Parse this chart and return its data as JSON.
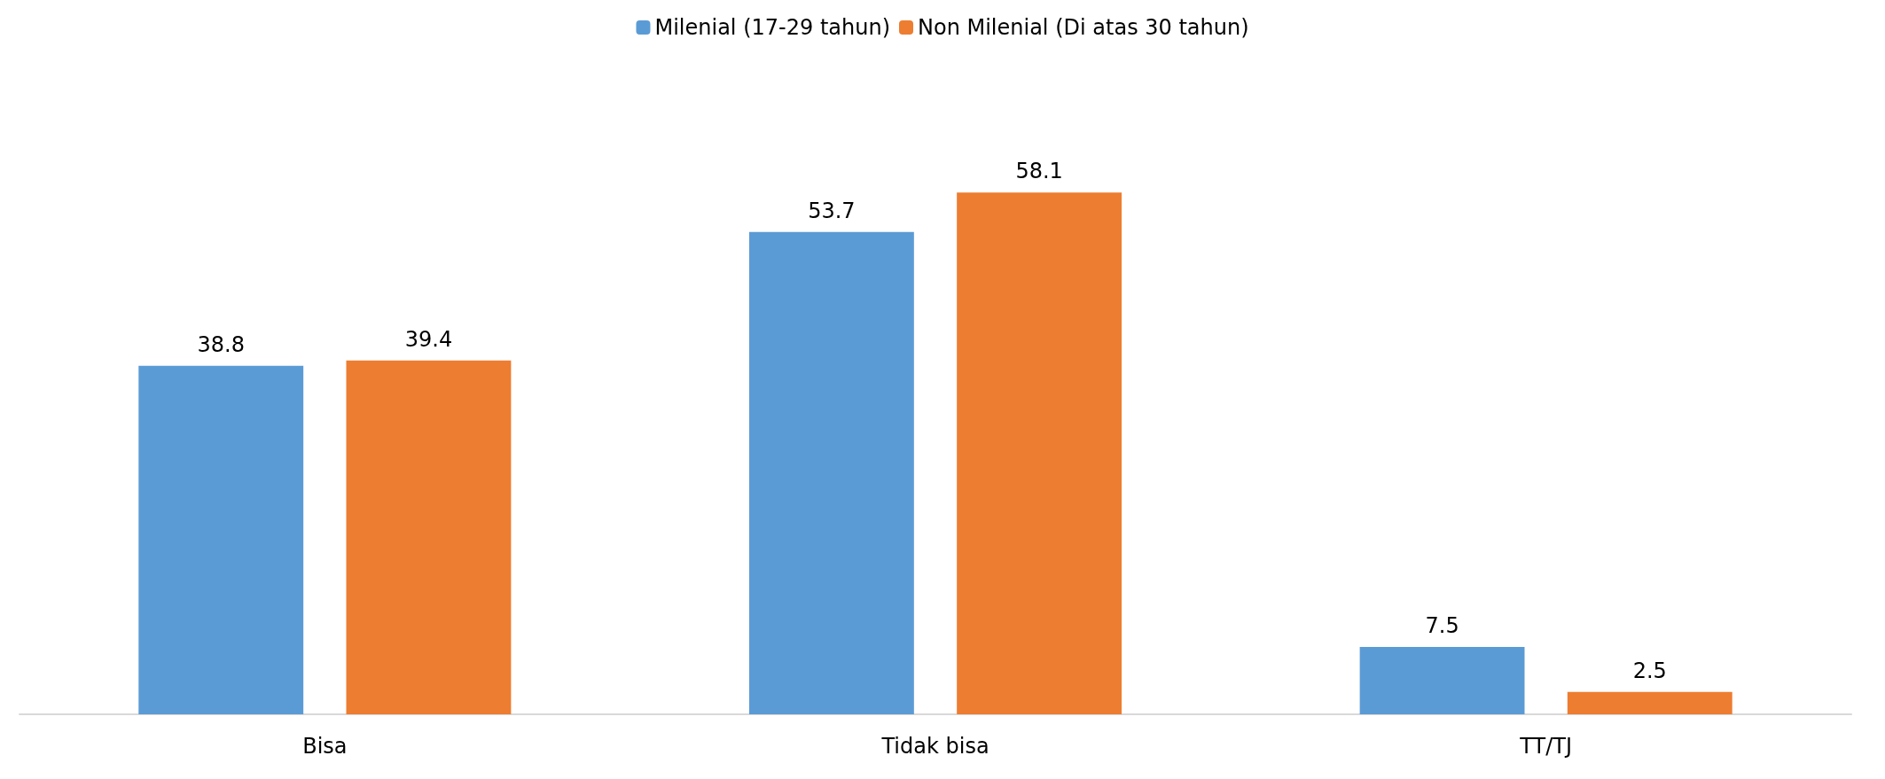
{
  "chart_data": {
    "type": "bar",
    "categories": [
      "Bisa",
      "Tidak bisa",
      "TT/TJ"
    ],
    "series": [
      {
        "name": "Milenial (17-29 tahun)",
        "color": "#5b9bd5",
        "values": [
          38.8,
          53.7,
          7.5
        ]
      },
      {
        "name": "Non Milenial (Di atas 30 tahun)",
        "color": "#ed7d31",
        "values": [
          39.4,
          58.1,
          2.5
        ]
      }
    ],
    "data_labels": true,
    "legend": "top",
    "grid": false
  }
}
